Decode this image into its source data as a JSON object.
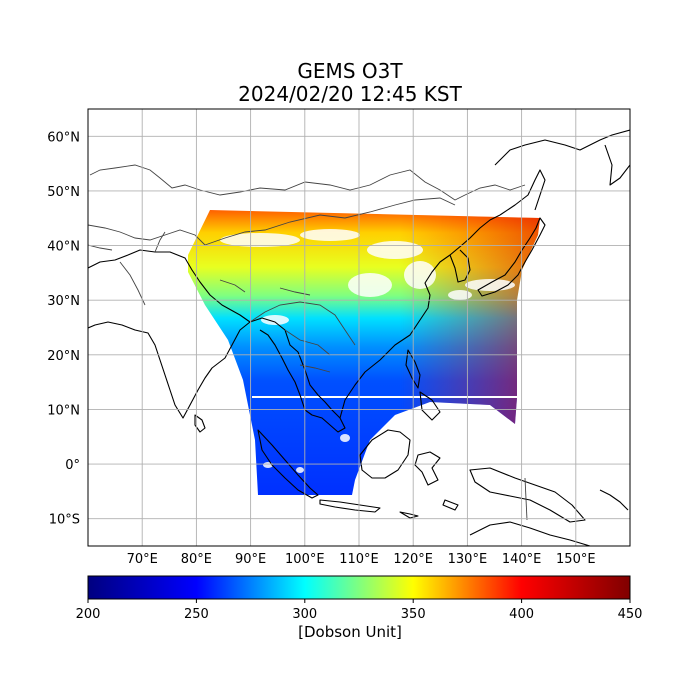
{
  "title": {
    "line1": "GEMS O3T",
    "line2": "2024/02/20 12:45 KST"
  },
  "map": {
    "lon_range": [
      60,
      160
    ],
    "lat_range": [
      -15,
      65
    ],
    "lon_ticks": [
      {
        "v": 70,
        "label": "70°E"
      },
      {
        "v": 80,
        "label": "80°E"
      },
      {
        "v": 90,
        "label": "90°E"
      },
      {
        "v": 100,
        "label": "100°E"
      },
      {
        "v": 110,
        "label": "110°E"
      },
      {
        "v": 120,
        "label": "120°E"
      },
      {
        "v": 130,
        "label": "130°E"
      },
      {
        "v": 140,
        "label": "140°E"
      },
      {
        "v": 150,
        "label": "150°E"
      }
    ],
    "lat_ticks": [
      {
        "v": 60,
        "label": "60°N"
      },
      {
        "v": 50,
        "label": "50°N"
      },
      {
        "v": 40,
        "label": "40°N"
      },
      {
        "v": 30,
        "label": "30°N"
      },
      {
        "v": 20,
        "label": "20°N"
      },
      {
        "v": 10,
        "label": "10°N"
      },
      {
        "v": 0,
        "label": "0°"
      },
      {
        "v": -10,
        "label": "10°S"
      }
    ],
    "grid": true,
    "gridlines_lon": [
      70,
      80,
      90,
      100,
      110,
      120,
      130,
      140,
      150
    ],
    "gridlines_lat": [
      60,
      50,
      40,
      30,
      20,
      10,
      0,
      -10
    ]
  },
  "colorbar": {
    "min": 200,
    "max": 450,
    "ticks": [
      {
        "v": 200,
        "label": "200"
      },
      {
        "v": 250,
        "label": "250"
      },
      {
        "v": 300,
        "label": "300"
      },
      {
        "v": 350,
        "label": "350"
      },
      {
        "v": 400,
        "label": "400"
      },
      {
        "v": 450,
        "label": "450"
      }
    ],
    "label": "[Dobson Unit]",
    "colormap": [
      "#000080",
      "#0000ff",
      "#00ffff",
      "#ffff00",
      "#ff0000",
      "#800000"
    ]
  }
}
